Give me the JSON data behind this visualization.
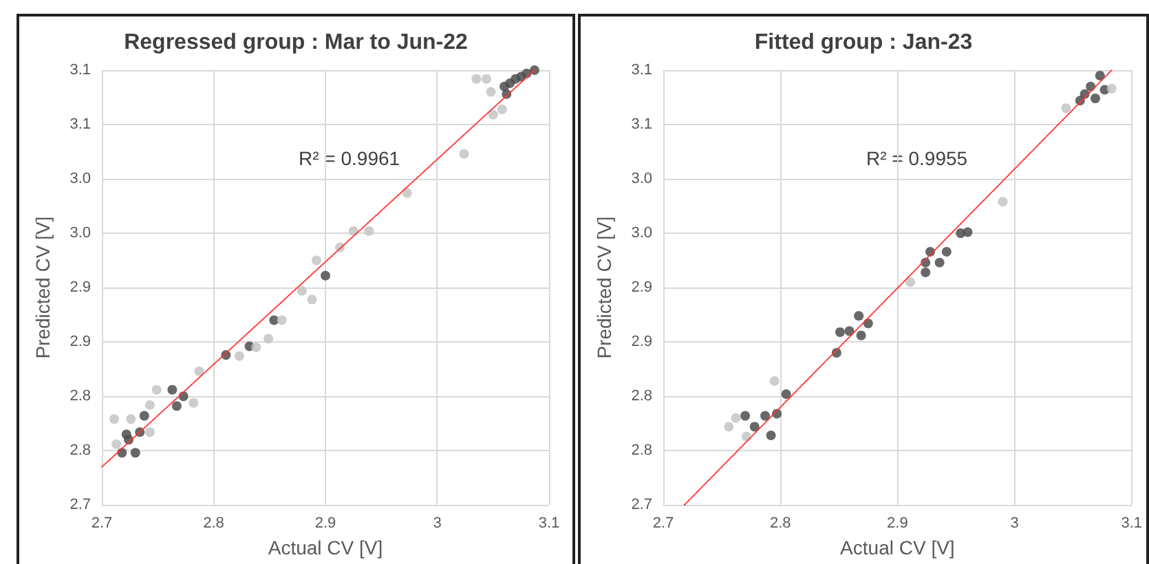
{
  "chart_data": [
    {
      "type": "scatter",
      "title": "Regressed group : Mar to Jun-22",
      "xlabel": "Actual CV [V]",
      "ylabel": "Predicted CV [V]",
      "annotations": [
        "R² = 0.9961"
      ],
      "xlim": [
        2.7,
        3.1
      ],
      "xticks": [
        2.7,
        2.8,
        2.9,
        3,
        3.1
      ],
      "ylim": [
        2.7,
        3.1
      ],
      "yticks": [
        {
          "value": 2.7,
          "label": "2.7"
        },
        {
          "value": 2.75,
          "label": "2.8"
        },
        {
          "value": 2.8,
          "label": "2.8"
        },
        {
          "value": 2.85,
          "label": "2.9"
        },
        {
          "value": 2.9,
          "label": "2.9"
        },
        {
          "value": 2.95,
          "label": "3.0"
        },
        {
          "value": 3.0,
          "label": "3.0"
        },
        {
          "value": 3.05,
          "label": "3.1"
        },
        {
          "value": 3.1,
          "label": "3.1"
        }
      ],
      "grid": true,
      "marker": "circle",
      "series": [
        {
          "color": "#4d4d4d",
          "x": [
            3.087,
            3.08,
            3.075,
            3.07,
            3.065,
            3.06,
            3.062,
            2.9,
            2.854,
            2.832,
            2.811,
            2.763,
            2.773,
            2.767,
            2.738,
            2.734,
            2.722,
            2.718,
            2.73,
            2.724
          ],
          "values": [
            3.1,
            3.097,
            3.094,
            3.092,
            3.088,
            3.085,
            3.078,
            2.911,
            2.87,
            2.846,
            2.838,
            2.806,
            2.8,
            2.791,
            2.782,
            2.767,
            2.765,
            2.748,
            2.748,
            2.76
          ]
        },
        {
          "color": "#c4c4c4",
          "x": [
            3.044,
            3.035,
            3.048,
            3.05,
            3.058,
            3.024,
            2.973,
            2.939,
            2.925,
            2.913,
            2.892,
            2.879,
            2.888,
            2.861,
            2.849,
            2.838,
            2.823,
            2.787,
            2.782,
            2.749,
            2.743,
            2.726,
            2.711,
            2.743,
            2.713
          ],
          "values": [
            3.092,
            3.092,
            3.08,
            3.059,
            3.064,
            3.023,
            2.987,
            2.952,
            2.952,
            2.937,
            2.925,
            2.897,
            2.889,
            2.87,
            2.853,
            2.845,
            2.837,
            2.823,
            2.794,
            2.806,
            2.792,
            2.779,
            2.779,
            2.767,
            2.756
          ]
        },
        {
          "type": "line",
          "color": "#ff3333",
          "line_style": "dotted",
          "marker": "none",
          "x": [
            2.7,
            3.087
          ],
          "values": [
            2.735,
            3.1
          ]
        }
      ]
    },
    {
      "type": "scatter",
      "title": "Fitted group : Jan-23",
      "xlabel": "Actual CV [V]",
      "ylabel": "Predicted CV [V]",
      "annotations": [
        "R² = 0.9955"
      ],
      "xlim": [
        2.7,
        3.1
      ],
      "xticks": [
        2.7,
        2.8,
        2.9,
        3,
        3.1
      ],
      "ylim": [
        2.7,
        3.1
      ],
      "yticks": [
        {
          "value": 2.7,
          "label": "2.7"
        },
        {
          "value": 2.75,
          "label": "2.8"
        },
        {
          "value": 2.8,
          "label": "2.8"
        },
        {
          "value": 2.85,
          "label": "2.9"
        },
        {
          "value": 2.9,
          "label": "2.9"
        },
        {
          "value": 2.95,
          "label": "3.0"
        },
        {
          "value": 3.0,
          "label": "3.0"
        },
        {
          "value": 3.05,
          "label": "3.1"
        },
        {
          "value": 3.1,
          "label": "3.1"
        }
      ],
      "grid": true,
      "marker": "circle",
      "series": [
        {
          "color": "#4d4d4d",
          "x": [
            3.073,
            3.06,
            3.069,
            3.077,
            3.056,
            3.065,
            2.96,
            2.954,
            2.942,
            2.924,
            2.924,
            2.936,
            2.928,
            2.867,
            2.875,
            2.851,
            2.859,
            2.869,
            2.848,
            2.805,
            2.797,
            2.787,
            2.77,
            2.778,
            2.792
          ],
          "values": [
            3.095,
            3.078,
            3.074,
            3.082,
            3.072,
            3.085,
            2.951,
            2.95,
            2.933,
            2.923,
            2.914,
            2.923,
            2.933,
            2.874,
            2.867,
            2.859,
            2.86,
            2.856,
            2.84,
            2.802,
            2.784,
            2.782,
            2.782,
            2.772,
            2.764
          ]
        },
        {
          "color": "#c4c4c4",
          "x": [
            3.083,
            3.044,
            2.99,
            2.911,
            2.795,
            2.762,
            2.756,
            2.771
          ],
          "values": [
            3.083,
            3.065,
            2.979,
            2.905,
            2.814,
            2.78,
            2.772,
            2.763
          ]
        },
        {
          "type": "line",
          "color": "#ff3333",
          "line_style": "dotted",
          "marker": "none",
          "x": [
            2.718,
            3.083
          ],
          "values": [
            2.7,
            3.1
          ]
        }
      ]
    }
  ]
}
